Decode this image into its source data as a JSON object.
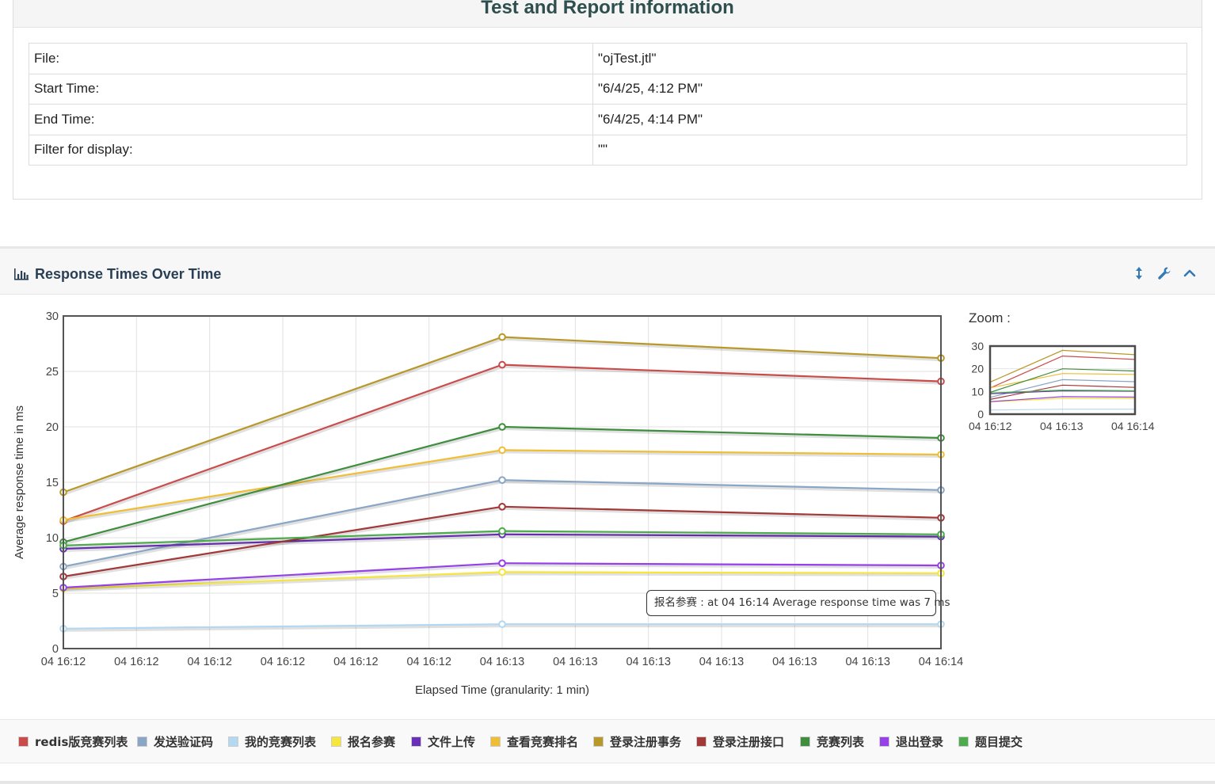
{
  "info_panel": {
    "title": "Test and Report information",
    "rows": [
      {
        "key": "File:",
        "value": "\"ojTest.jtl\""
      },
      {
        "key": "Start Time:",
        "value": "\"6/4/25, 4:12 PM\""
      },
      {
        "key": "End Time:",
        "value": "\"6/4/25, 4:14 PM\""
      },
      {
        "key": "Filter for display:",
        "value": "\"\""
      }
    ]
  },
  "chart_panel": {
    "title": "Response Times Over Time",
    "icons": [
      "bar-chart-icon",
      "expand-vertical-icon",
      "wrench-icon",
      "chevron-up-icon"
    ],
    "zoom_label": "Zoom :",
    "tooltip": "报名参赛 : at 04 16:14 Average response time was 7 ms"
  },
  "chart_data": {
    "type": "line",
    "xlabel": "Elapsed Time (granularity: 1 min)",
    "ylabel": "Average response time in ms",
    "ylim": [
      0,
      30
    ],
    "yticks": [
      0,
      5,
      10,
      15,
      20,
      25,
      30
    ],
    "xtick_labels": [
      "04 16:12",
      "04 16:12",
      "04 16:12",
      "04 16:12",
      "04 16:12",
      "04 16:12",
      "04 16:13",
      "04 16:13",
      "04 16:13",
      "04 16:13",
      "04 16:13",
      "04 16:13",
      "04 16:14"
    ],
    "x": [
      "04 16:12",
      "04 16:13",
      "04 16:14"
    ],
    "grid": true,
    "legend_position": "bottom",
    "series": [
      {
        "name": "redis版竞赛列表",
        "color": "#cb4b4b",
        "values": [
          11.5,
          25.6,
          24.1
        ]
      },
      {
        "name": "发送验证码",
        "color": "#8aa6c6",
        "values": [
          7.4,
          15.2,
          14.3
        ]
      },
      {
        "name": "我的竞赛列表",
        "color": "#b3d8f2",
        "values": [
          1.8,
          2.2,
          2.2
        ]
      },
      {
        "name": "报名参赛",
        "color": "#f6e53a",
        "values": [
          5.4,
          6.9,
          6.8
        ]
      },
      {
        "name": "文件上传",
        "color": "#6a2fb8",
        "values": [
          9.0,
          10.3,
          10.1
        ]
      },
      {
        "name": "查看竞赛排名",
        "color": "#f0be35",
        "values": [
          11.6,
          17.9,
          17.5
        ]
      },
      {
        "name": "登录注册事务",
        "color": "#b9982a",
        "values": [
          14.1,
          28.1,
          26.2
        ]
      },
      {
        "name": "登录注册接口",
        "color": "#a23838",
        "values": [
          6.5,
          12.8,
          11.8
        ]
      },
      {
        "name": "竞赛列表",
        "color": "#3e8e3e",
        "values": [
          9.6,
          20.0,
          19.0
        ]
      },
      {
        "name": "退出登录",
        "color": "#9640e8",
        "values": [
          5.5,
          7.7,
          7.5
        ]
      },
      {
        "name": "题目提交",
        "color": "#4cab4c",
        "values": [
          9.3,
          10.6,
          10.3
        ]
      }
    ],
    "zoom": {
      "yticks": [
        0,
        10,
        20,
        30
      ],
      "xtick_labels": [
        "04 16:12",
        "04 16:13",
        "04 16:14"
      ]
    }
  }
}
